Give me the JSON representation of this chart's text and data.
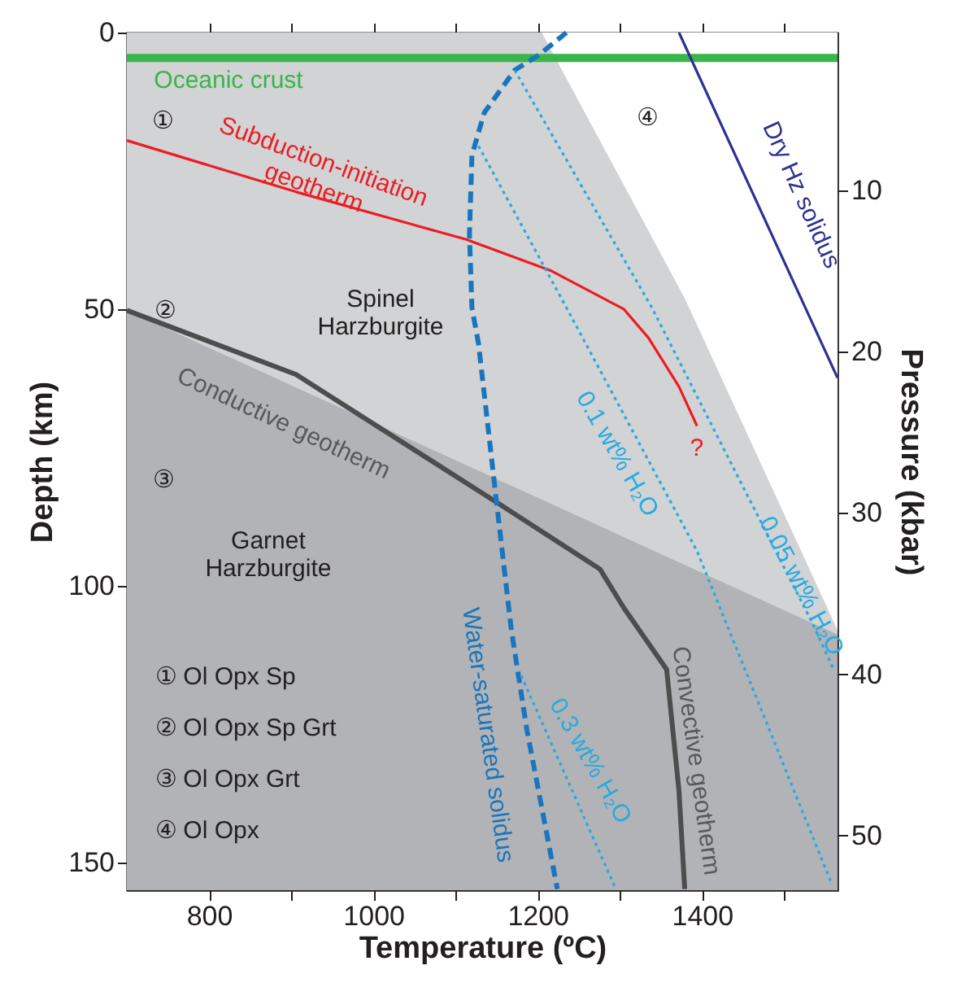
{
  "chart_data": {
    "type": "line",
    "xlabel": "Temperature (ºC)",
    "ylabel": "Depth (km)",
    "y2label": "Pressure (kbar)",
    "xlim": [
      700,
      1565
    ],
    "ylim": [
      155,
      0
    ],
    "y2lim": [
      53.4,
      0.2
    ],
    "xticks": [
      800,
      {
        "value": 900,
        "label": null
      },
      1000,
      {
        "value": 1100,
        "label": null
      },
      1200,
      {
        "value": 1300,
        "label": null
      },
      1400,
      {
        "value": 1500,
        "label": null
      }
    ],
    "yticks": [
      0,
      50,
      100,
      150
    ],
    "y2ticks": [
      10,
      20,
      30,
      40,
      50
    ],
    "grid": false,
    "bands": [
      {
        "axis": "y",
        "from": 0,
        "to": 155,
        "color": "#b1b3b6"
      }
    ],
    "series": [
      {
        "type": "area",
        "color": "#d1d3d4",
        "x": [
          700,
          1565
        ],
        "values": [
          50.2,
          108.8
        ]
      },
      {
        "type": "area",
        "color": "#ffffff",
        "x": [
          1205,
          1379,
          1565
        ],
        "values": [
          0,
          48,
          108
        ]
      },
      {
        "color": "#39b54a",
        "x": [
          700,
          1565
        ],
        "values": [
          4.6,
          4.6
        ]
      },
      {
        "color": "#2e3192",
        "x": [
          1372,
          1565
        ],
        "values": [
          0,
          62.4
        ]
      },
      {
        "color": "#ed1c24",
        "x": [
          700,
          906,
          1113,
          1217,
          1305,
          1335,
          1372,
          1394
        ],
        "values": [
          19.5,
          28.8,
          37.4,
          43.1,
          50,
          55.2,
          64,
          71.1
        ]
      },
      {
        "color": "#4d4d4d",
        "x": [
          700,
          906,
          1150,
          1276,
          1305,
          1357,
          1372,
          1379
        ],
        "values": [
          50.2,
          61.8,
          84.9,
          97,
          104,
          115.1,
          137,
          154.8
        ]
      },
      {
        "color": "#1b75bc",
        "line_style": "dashed",
        "x": [
          1235,
          1202,
          1172,
          1135,
          1120,
          1117,
          1120,
          1128,
          1150,
          1168,
          1187,
          1224
        ],
        "values": [
          0,
          4,
          6.8,
          14.5,
          22.2,
          36.5,
          49.7,
          56.2,
          84.9,
          108,
          126.1,
          154.8
        ]
      },
      {
        "color": "#27aae1",
        "line_style": "dotted",
        "x": [
          1128,
          1239,
          1394,
          1557
        ],
        "values": [
          20.5,
          50.8,
          93.7,
          153.5
        ]
      },
      {
        "color": "#27aae1",
        "line_style": "dotted",
        "x": [
          1172,
          1339,
          1535,
          1560
        ],
        "values": [
          6.8,
          49.7,
          106.9,
          115
        ]
      },
      {
        "color": "#27aae1",
        "line_style": "dotted",
        "x": [
          1180,
          1294
        ],
        "values": [
          116.2,
          154.4
        ]
      }
    ],
    "annotations": [
      "Oceanic crust",
      "①",
      "④",
      "Subduction-initiation\ngeotherm",
      "Dry Hz solidus",
      "Spinel\nHarzburgite",
      "②",
      "Conductive geotherm",
      "?",
      "0.1 wt% H₂O",
      "③",
      "Garnet\nHarzburgite",
      "0.05 wt% H₂O",
      "Water-saturated solidus",
      "Convective geotherm",
      "0.3 wt% H₂O",
      "① Ol Opx Sp",
      "② Ol Opx Sp Grt",
      "③ Ol Opx Grt",
      "④ Ol Opx"
    ]
  }
}
